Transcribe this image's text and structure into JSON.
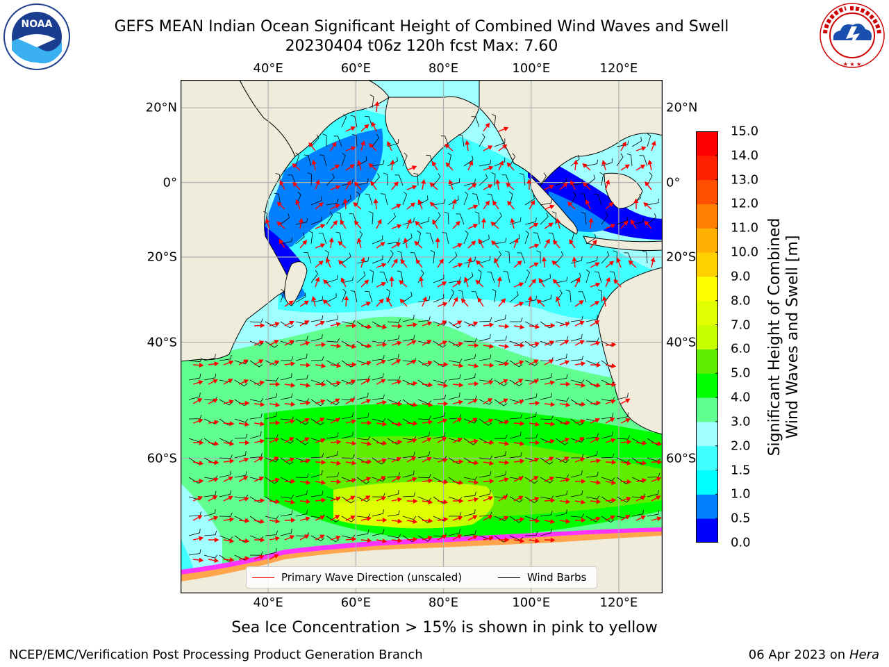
{
  "header": {
    "title_line1": "GEFS MEAN Indian Ocean Significant Height of Combined Wind Waves and Swell",
    "title_line2": "20230404 t06z 120h fcst   Max: 7.60"
  },
  "logos": {
    "left": {
      "icon": "noaa-logo-icon",
      "text": "NOAA"
    },
    "right": {
      "icon": "nws-logo-icon",
      "text": "NATIONAL WEATHER SERVICE"
    }
  },
  "map": {
    "lon_range": [
      20,
      130
    ],
    "lat_range": [
      -74,
      27
    ],
    "lon_ticks": [
      "40°E",
      "60°E",
      "80°E",
      "100°E",
      "120°E"
    ],
    "lon_values": [
      40,
      60,
      80,
      100,
      120
    ],
    "lat_ticks": [
      "20°N",
      "0°",
      "20°S",
      "40°S",
      "60°S"
    ],
    "lat_values": [
      20,
      0,
      -20,
      -40,
      -60
    ],
    "grid": true,
    "land_color": "#efecdc",
    "ice_colors": [
      "#ff33ff",
      "#ffa64d",
      "#ffff66"
    ],
    "arrow_color": "#ff0000",
    "barb_color": "#000000"
  },
  "colorbar": {
    "label_line1": "Significant Height of Combined",
    "label_line2": "Wind Waves and Swell [m]",
    "ticks": [
      "0.0",
      "0.5",
      "1.0",
      "1.5",
      "2.0",
      "3.0",
      "4.0",
      "5.0",
      "6.0",
      "7.0",
      "8.0",
      "9.0",
      "10.0",
      "11.0",
      "12.0",
      "13.0",
      "14.0",
      "15.0"
    ],
    "colors": [
      "#0000ff",
      "#0080ff",
      "#00ffff",
      "#40ffff",
      "#a0ffff",
      "#60ff90",
      "#00ff00",
      "#60ee00",
      "#c8ff00",
      "#e0ff00",
      "#ffff00",
      "#ffd000",
      "#ffb000",
      "#ff8000",
      "#ff5000",
      "#ff2000",
      "#ff0000"
    ]
  },
  "legend": {
    "wave_direction_label": "Primary Wave Direction (unscaled)",
    "wind_barbs_label": "Wind Barbs",
    "wave_color": "#ff0000",
    "barb_color": "#000000"
  },
  "caption": "Sea Ice Concentration > 15% is shown in pink to yellow",
  "footer": {
    "left": "NCEP/EMC/Verification Post Processing Product Generation Branch",
    "date": "06 Apr 2023 on ",
    "host": "Hera"
  }
}
